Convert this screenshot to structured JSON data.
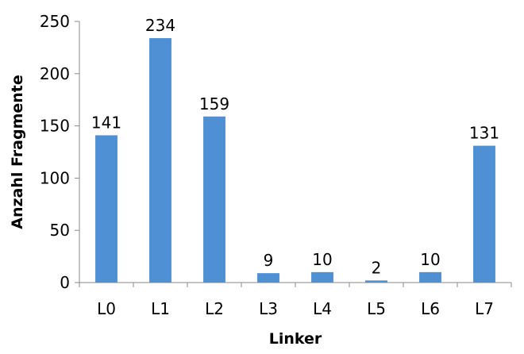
{
  "chart_data": {
    "type": "bar",
    "categories": [
      "L0",
      "L1",
      "L2",
      "L3",
      "L4",
      "L5",
      "L6",
      "L7"
    ],
    "values": [
      141,
      234,
      159,
      9,
      10,
      2,
      10,
      131
    ],
    "data_labels": [
      "141",
      "234",
      "159",
      "9",
      "10",
      "2",
      "10",
      "131"
    ],
    "title": "",
    "xlabel": "Linker",
    "ylabel": "Anzahl Fragmente",
    "ylim": [
      0,
      250
    ],
    "yticks": [
      0,
      50,
      100,
      150,
      200,
      250
    ],
    "ytick_labels": [
      "0",
      "50",
      "100",
      "150",
      "200",
      "250"
    ],
    "grid": false,
    "legend": "none",
    "colors": {
      "bar": "#4f8fd4",
      "axis": "#888888",
      "text": "#000000"
    }
  }
}
